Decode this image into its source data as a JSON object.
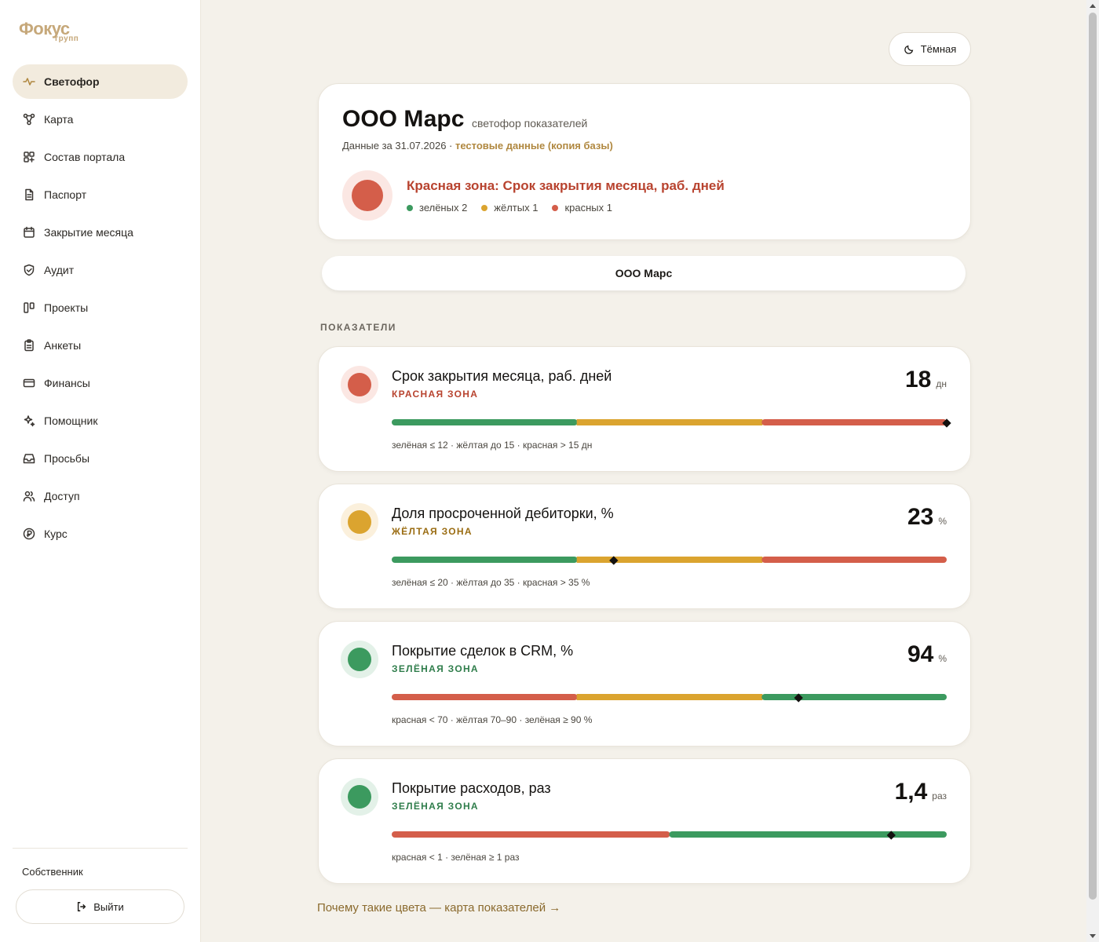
{
  "logo": {
    "line1": "Фокус",
    "line2": "групп"
  },
  "sidebar": {
    "items": [
      {
        "label": "Светофор",
        "icon": "pulse-icon",
        "active": true
      },
      {
        "label": "Карта",
        "icon": "graph-nodes-icon"
      },
      {
        "label": "Состав портала",
        "icon": "grid-plus-icon"
      },
      {
        "label": "Паспорт",
        "icon": "document-icon"
      },
      {
        "label": "Закрытие месяца",
        "icon": "calendar-icon"
      },
      {
        "label": "Аудит",
        "icon": "shield-check-icon"
      },
      {
        "label": "Проекты",
        "icon": "kanban-icon"
      },
      {
        "label": "Анкеты",
        "icon": "clipboard-icon"
      },
      {
        "label": "Финансы",
        "icon": "credit-card-icon"
      },
      {
        "label": "Помощник",
        "icon": "sparkles-icon"
      },
      {
        "label": "Просьбы",
        "icon": "inbox-icon"
      },
      {
        "label": "Доступ",
        "icon": "users-icon"
      },
      {
        "label": "Курс",
        "icon": "currency-icon"
      }
    ],
    "role": "Собственник",
    "logout_label": "Выйти"
  },
  "theme_toggle": {
    "label": "Тёмная",
    "icon": "moon-icon"
  },
  "header": {
    "company": "ООО Марс",
    "subtitle": "светофор показателей",
    "data_date": "Данные за 31.07.2026 · ",
    "test_note": "тестовые данные (копия базы)",
    "zone_title": "Красная зона: Срок закрытия месяца, раб. дней",
    "counts": [
      {
        "label": "зелёных 2",
        "color": "#3c9a5f"
      },
      {
        "label": "жёлтых 1",
        "color": "#dba42f"
      },
      {
        "label": "красных 1",
        "color": "#d45e4a"
      }
    ]
  },
  "company_selector": "ООО Марс",
  "section_label": "ПОКАЗАТЕЛИ",
  "indicators": [
    {
      "name": "Срок закрытия месяца, раб. дней",
      "zone": "КРАСНАЯ ЗОНА",
      "value": "18",
      "unit": "дн",
      "legend": "зелёная ≤ 12 · жёлтая до 15 · красная > 15 дн",
      "status_color": "#d45e4a",
      "halo_color": "#fbe7e3",
      "zone_text_color": "#b8432f",
      "segments": [
        "#3c9a5f",
        "#dba42f",
        "#d45e4a"
      ],
      "marker_position": 1.0
    },
    {
      "name": "Доля просроченной дебиторки, %",
      "zone": "ЖЁЛТАЯ ЗОНА",
      "value": "23",
      "unit": "%",
      "legend": "зелёная ≤ 20 · жёлтая до 35 · красная > 35 %",
      "status_color": "#dba42f",
      "halo_color": "#fbf0dc",
      "zone_text_color": "#9a6c12",
      "segments": [
        "#3c9a5f",
        "#dba42f",
        "#d45e4a"
      ],
      "marker_position": 0.4
    },
    {
      "name": "Покрытие сделок в CRM, %",
      "zone": "ЗЕЛЁНАЯ ЗОНА",
      "value": "94",
      "unit": "%",
      "legend": "красная < 70 · жёлтая 70–90 · зелёная ≥ 90 %",
      "status_color": "#3c9a5f",
      "halo_color": "#e3f1e8",
      "zone_text_color": "#2f7d4b",
      "segments": [
        "#d45e4a",
        "#dba42f",
        "#3c9a5f"
      ],
      "marker_position": 0.733
    },
    {
      "name": "Покрытие расходов, раз",
      "zone": "ЗЕЛЁНАЯ ЗОНА",
      "value": "1,4",
      "unit": "раз",
      "legend": "красная < 1 · зелёная ≥ 1 раз",
      "status_color": "#3c9a5f",
      "halo_color": "#e3f1e8",
      "zone_text_color": "#2f7d4b",
      "segments": [
        "#d45e4a",
        "#3c9a5f"
      ],
      "marker_position": 0.9
    }
  ],
  "footer_link": "Почему такие цвета — карта показателей →"
}
